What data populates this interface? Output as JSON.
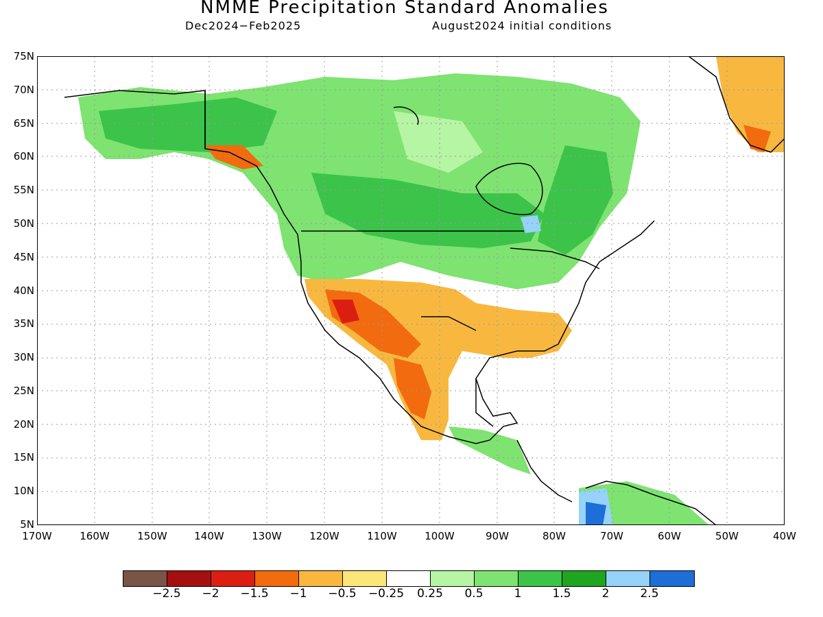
{
  "title": "NMME Precipitation Standard Anomalies",
  "subtitle_left": "Dec2024−Feb2025",
  "subtitle_right": "August2024 initial conditions",
  "lat_labels": [
    "75N",
    "70N",
    "65N",
    "60N",
    "55N",
    "50N",
    "45N",
    "40N",
    "35N",
    "30N",
    "25N",
    "20N",
    "15N",
    "10N",
    "5N"
  ],
  "lon_labels": [
    "170W",
    "160W",
    "150W",
    "140W",
    "130W",
    "120W",
    "110W",
    "100W",
    "90W",
    "80W",
    "70W",
    "60W",
    "50W",
    "40W"
  ],
  "legend": {
    "colors": [
      "#7a5446",
      "#a50f0f",
      "#dc1e12",
      "#f26b0e",
      "#f8b840",
      "#fce67a",
      "#ffffff",
      "#b6f5a3",
      "#7ee370",
      "#3cc34a",
      "#1fa51f",
      "#96d2fa",
      "#1e6ed7"
    ],
    "labels": [
      "−2.5",
      "−2",
      "−1.5",
      "−1",
      "−0.5",
      "−0.25",
      "0.25",
      "0.5",
      "1",
      "1.5",
      "2",
      "2.5"
    ]
  },
  "map": {
    "bounds": {
      "lon": [
        -170,
        -40
      ],
      "lat": [
        5,
        75
      ]
    },
    "grid_style": "dotted"
  }
}
